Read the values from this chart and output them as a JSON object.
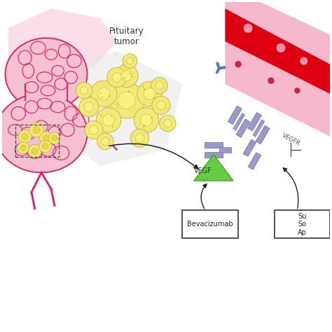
{
  "bg_color": "#ffffff",
  "pituitary_tumor_label": "Pituitary\ntumor",
  "vegf_label": "VEGF",
  "vegfr_label": "VEGFR",
  "bevacizumab_label": "Bevacizumab",
  "box2_label": "Su\nSo\nAp",
  "arrow_color": "#222222",
  "tumor_fill": "#f0e878",
  "tumor_outline": "#c8b840",
  "cell_fill": "#f5ef90",
  "cell_outline": "#c8b840",
  "nucleus_fill": "#e8d840",
  "blood_vessel_red": "#dd0011",
  "blood_vessel_pink": "#f5b8cc",
  "body_pink_fill": "#f5c0d0",
  "body_outline": "#e8186a",
  "vegf_green": "#66cc44",
  "vegfr_blue": "#9999cc",
  "vegfr_dark": "#7777aa",
  "antibody_blue": "#6677bb",
  "box_color": "#444444",
  "dashed_box_color": "#444444",
  "pink_blob": "#f8d0e0"
}
